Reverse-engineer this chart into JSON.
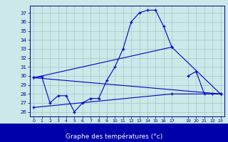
{
  "title": "Graphe des températures (°c)",
  "background_color": "#cce8e8",
  "label_bar_color": "#0000aa",
  "line_color": "#0000cc",
  "ylim": [
    25.5,
    37.8
  ],
  "xlim": [
    -0.5,
    23.5
  ],
  "yticks": [
    26,
    27,
    28,
    29,
    30,
    31,
    32,
    33,
    34,
    35,
    36,
    37
  ],
  "xticks": [
    0,
    1,
    2,
    3,
    4,
    5,
    6,
    7,
    8,
    9,
    10,
    11,
    12,
    13,
    14,
    15,
    16,
    17,
    19,
    20,
    21,
    22,
    23
  ],
  "line1_x": [
    0,
    1,
    2,
    3,
    4,
    5,
    6,
    7,
    8,
    9,
    10,
    11,
    12,
    13,
    14,
    15,
    16,
    17
  ],
  "line1_y": [
    29.8,
    29.9,
    27.0,
    27.8,
    27.8,
    26.0,
    27.0,
    27.5,
    27.5,
    29.5,
    31.0,
    33.0,
    36.0,
    37.0,
    37.3,
    37.3,
    35.5,
    33.2
  ],
  "line1b_x": [
    19,
    20,
    21,
    22,
    23
  ],
  "line1b_y": [
    30.0,
    30.5,
    28.0,
    28.0,
    28.0
  ],
  "line2_x": [
    0,
    17,
    23
  ],
  "line2_y": [
    29.8,
    33.2,
    28.0
  ],
  "line3_x": [
    0,
    23
  ],
  "line3_y": [
    29.8,
    28.0
  ],
  "line4_x": [
    0,
    17,
    23
  ],
  "line4_y": [
    26.5,
    28.0,
    28.0
  ]
}
